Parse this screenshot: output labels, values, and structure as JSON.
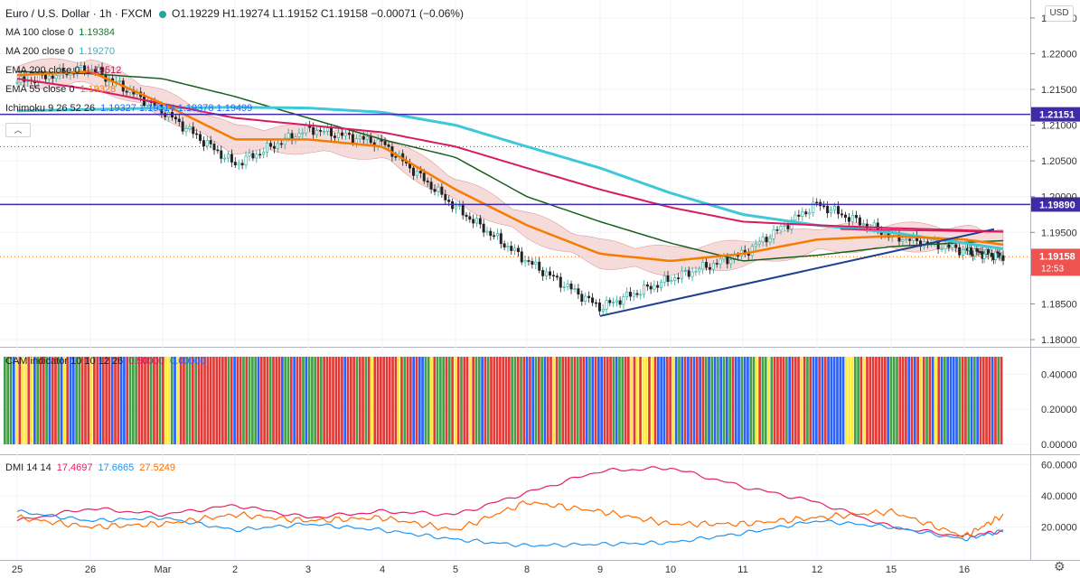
{
  "header": {
    "symbol": "Euro / U.S. Dollar · 1h · FXCM",
    "ohlc": "O1.19229 H1.19274 L1.19152 C1.19158 −0.00071 (−0.06%)"
  },
  "indicators": [
    {
      "label": "MA 100 close 0",
      "value": "1.19384",
      "color": "#1a7a2e"
    },
    {
      "label": "MA 200 close 0",
      "value": "1.19270",
      "color": "#2eb8c8"
    },
    {
      "label": "EMA 200 close 0",
      "value": "1.19512",
      "color": "#c2185b"
    },
    {
      "label": "EMA 55 close 0",
      "value": "1.19328",
      "color": "#f57c00"
    },
    {
      "label": "Ichimoku 9 26 52 26",
      "value": "1.19327  1.19314  1.19378  1.19499",
      "color": "#2962ff"
    }
  ],
  "currency_button": "USD",
  "colors": {
    "up_candle": "#26a69a",
    "down_candle": "#222222",
    "ma100": "#1a5e20",
    "ma200": "#3ec8d8",
    "ema200": "#d81b60",
    "ema55": "#f57c00",
    "level_line": "#3f2aa8",
    "trendline": "#1f3f8f",
    "cloud": "#f5d5d5",
    "pdi": "#2196f3",
    "mdi": "#e91e63",
    "adx": "#ff6d00"
  },
  "chart_data": [
    {
      "type": "line",
      "title": "Euro / U.S. Dollar · 1h · FXCM",
      "y_ticks": [
        "1.22500",
        "1.22000",
        "1.21500",
        "1.21000",
        "1.20500",
        "1.20000",
        "1.19500",
        "1.18500",
        "1.18000"
      ],
      "ylim": [
        1.1795,
        1.227
      ],
      "x_ticks": [
        "25",
        "26",
        "Mar",
        "2",
        "3",
        "4",
        "5",
        "8",
        "9",
        "10",
        "11",
        "12",
        "15",
        "16"
      ],
      "levels": [
        {
          "label": "1.21151",
          "value": 1.21151
        },
        {
          "label": "1.19890",
          "value": 1.1989
        }
      ],
      "last_price": {
        "label": "1.19158",
        "countdown": "12:53",
        "value": 1.19158
      },
      "price_x": [
        "25",
        "26",
        "Mar",
        "2",
        "3",
        "4",
        "5",
        "8",
        "9",
        "10",
        "11",
        "12",
        "15",
        "16",
        "16.5"
      ],
      "price": [
        1.216,
        1.218,
        1.212,
        1.2045,
        1.2095,
        1.2075,
        1.1985,
        1.191,
        1.1845,
        1.1885,
        1.192,
        1.199,
        1.1945,
        1.1925,
        1.1916
      ],
      "series": [
        {
          "name": "MA 100 close 0",
          "values": [
            1.2175,
            1.2172,
            1.2165,
            1.214,
            1.211,
            1.208,
            1.2055,
            1.2,
            1.1965,
            1.1935,
            1.191,
            1.1918,
            1.193,
            1.1936,
            1.19384
          ]
        },
        {
          "name": "MA 200 close 0",
          "values": [
            1.212,
            1.2122,
            1.2124,
            1.2125,
            1.2124,
            1.2118,
            1.21,
            1.207,
            1.204,
            1.2005,
            1.1975,
            1.196,
            1.195,
            1.1935,
            1.1927
          ]
        },
        {
          "name": "EMA 200 close 0",
          "values": [
            1.2165,
            1.215,
            1.213,
            1.211,
            1.21,
            1.209,
            1.207,
            1.204,
            1.201,
            1.1985,
            1.1965,
            1.196,
            1.1956,
            1.1953,
            1.19512
          ]
        },
        {
          "name": "EMA 55 close 0",
          "values": [
            1.217,
            1.2175,
            1.213,
            1.208,
            1.208,
            1.207,
            1.201,
            1.196,
            1.192,
            1.191,
            1.192,
            1.194,
            1.1945,
            1.194,
            1.19328
          ]
        }
      ]
    },
    {
      "type": "bar",
      "title": "CAM indicator 10 10 12 26",
      "legend_values": [
        "0.50000",
        "0.00000"
      ],
      "y_ticks": [
        "0.40000",
        "0.20000",
        "0.00000"
      ],
      "ylim": [
        0,
        0.5
      ],
      "color_sequence": "GGGBYRYYRYBGRRGBRRGBYRBBGGRRRYRRBRRRBRRBBRGGGRRRRGRRGRYYGBYRRGGRGRRRRRRRRRRGRBRRGRGGGBRRRGRRRBGGRBRRGBGGGRGRRRRRRRBRRRGRRGRYRRRRRRRRYRGRRBRBBGGYRGGGRGRYRGRRYRGGBRGRRRRRRRGGRGRBRBGRGBRRYRGRRRGRGRRBGBRBBRRRGBGGRRYRYRYYRYRBBBRRYBGBRBRBRBRGBGBGBGBGRBBGBBGGYRGGYGRRRRGBRRRYRGRBBRBRBBBBBBYYYGGRYRRRRRRRBGGGRRRBRBRYRGRBYRBGBBBBGRRGBGBRRRRBRGR"
    },
    {
      "type": "line",
      "title": "DMI 14 14",
      "legend_values": [
        "17.4697",
        "17.6665",
        "27.5249"
      ],
      "y_ticks": [
        "60.0000",
        "40.0000",
        "20.0000"
      ],
      "ylim": [
        0,
        65
      ],
      "x_ticks": [
        "25",
        "26",
        "Mar",
        "2",
        "3",
        "4",
        "5",
        "8",
        "9",
        "10",
        "11",
        "12",
        "15",
        "16",
        "16.5"
      ],
      "series": [
        {
          "name": "17.4697",
          "values": [
            24,
            32,
            28,
            34,
            26,
            30,
            28,
            42,
            56,
            58,
            46,
            36,
            20,
            14,
            17.4697
          ]
        },
        {
          "name": "17.6665",
          "values": [
            30,
            24,
            26,
            18,
            22,
            18,
            12,
            8,
            9,
            10,
            16,
            24,
            20,
            12,
            17.6665
          ]
        },
        {
          "name": "27.5249",
          "values": [
            26,
            20,
            22,
            28,
            24,
            26,
            18,
            36,
            30,
            22,
            22,
            26,
            30,
            14,
            27.5249
          ]
        }
      ]
    }
  ]
}
